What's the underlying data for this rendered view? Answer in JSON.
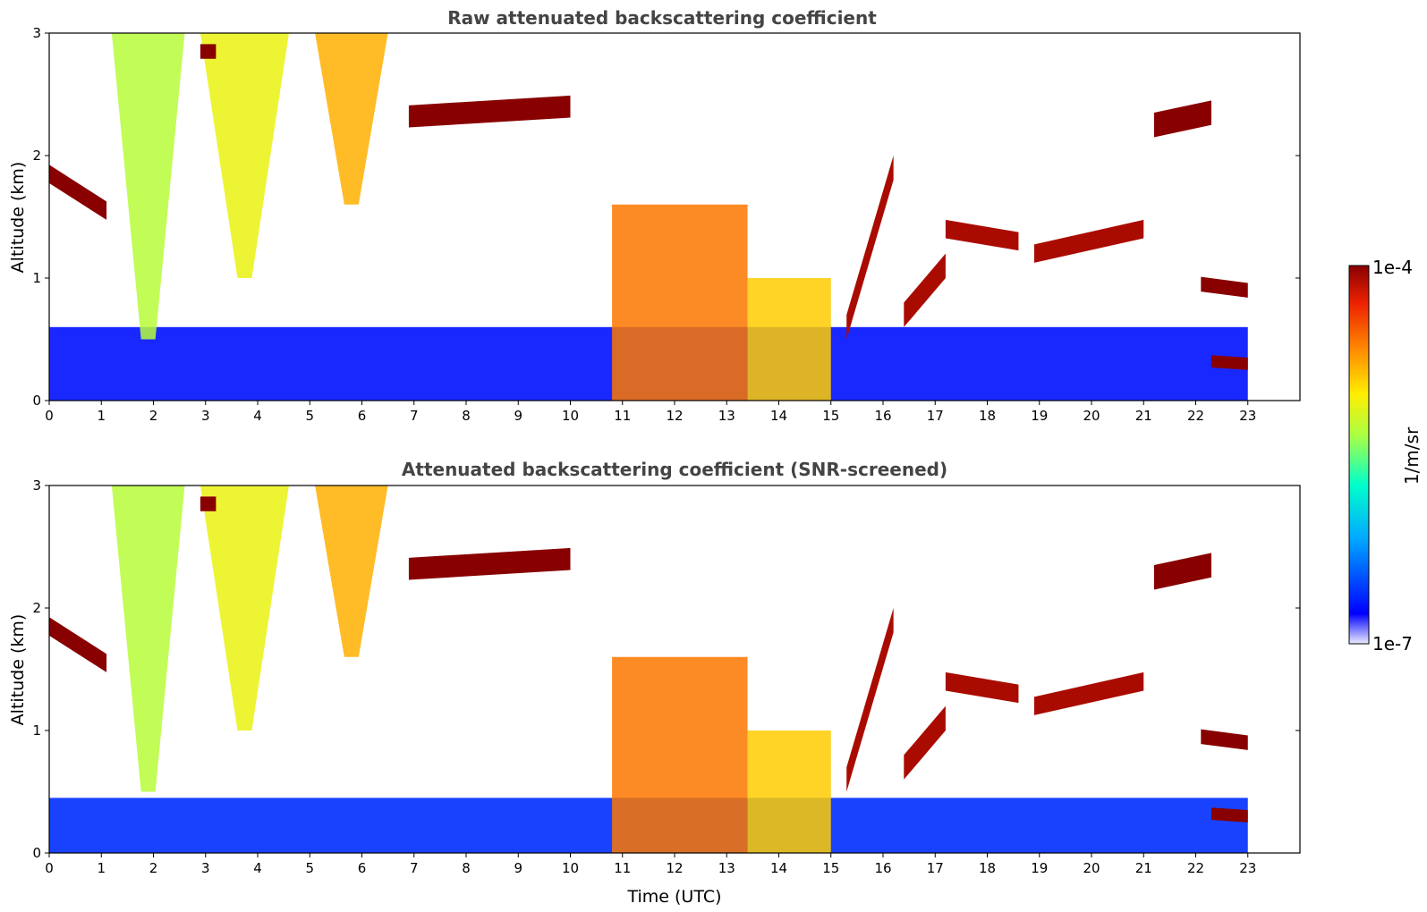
{
  "chart_data": [
    {
      "type": "heatmap",
      "title": "Raw attenuated backscattering coefficient",
      "ylabel": "Altitude (km)",
      "xlabel": "",
      "xlim": [
        0,
        24
      ],
      "ylim": [
        0,
        3
      ],
      "x_ticks": [
        "0",
        "1",
        "2",
        "3",
        "4",
        "5",
        "6",
        "7",
        "8",
        "9",
        "10",
        "11",
        "12",
        "13",
        "14",
        "15",
        "16",
        "17",
        "18",
        "19",
        "20",
        "21",
        "22",
        "23"
      ],
      "y_ticks": [
        "0",
        "1",
        "2",
        "3"
      ],
      "data_end_time": 23,
      "color_scale": "log",
      "features": [
        {
          "kind": "near-surface background",
          "t_start": 0,
          "t_end": 23,
          "alt_top": 0.6,
          "log_value": -6.7
        },
        {
          "kind": "cloud layer",
          "t_start": 0.0,
          "t_end": 1.1,
          "alt_from": 1.85,
          "alt_to": 1.55,
          "thickness": 0.15,
          "log_value": -4.0
        },
        {
          "kind": "precipitation shaft",
          "t_start": 1.2,
          "t_end": 2.6,
          "alt_bottom": 0.5,
          "alt_top": 3.0,
          "log_value": -5.3
        },
        {
          "kind": "precipitation shaft",
          "t_start": 2.9,
          "t_end": 4.6,
          "alt_bottom": 1.0,
          "alt_top": 3.0,
          "log_value": -5.1
        },
        {
          "kind": "cloud layer",
          "t_start": 2.9,
          "t_end": 3.2,
          "alt_from": 2.85,
          "alt_to": 2.85,
          "thickness": 0.12,
          "log_value": -4.0
        },
        {
          "kind": "precipitation shaft",
          "t_start": 5.1,
          "t_end": 6.5,
          "alt_bottom": 1.6,
          "alt_top": 3.0,
          "log_value": -4.8
        },
        {
          "kind": "cloud layer",
          "t_start": 6.9,
          "t_end": 10.0,
          "alt_from": 2.32,
          "alt_to": 2.4,
          "thickness": 0.18,
          "log_value": -4.0
        },
        {
          "kind": "convective cloud",
          "t_start": 10.8,
          "t_end": 13.4,
          "alt_bottom": 0.0,
          "alt_top": 1.6,
          "log_value": -4.6
        },
        {
          "kind": "convective cloud",
          "t_start": 13.4,
          "t_end": 15.0,
          "alt_bottom": 0.0,
          "alt_top": 1.0,
          "log_value": -4.9
        },
        {
          "kind": "cloud layer",
          "t_start": 15.3,
          "t_end": 16.2,
          "alt_from": 0.6,
          "alt_to": 1.9,
          "thickness": 0.2,
          "log_value": -4.1
        },
        {
          "kind": "cloud layer",
          "t_start": 16.4,
          "t_end": 17.2,
          "alt_from": 0.7,
          "alt_to": 1.1,
          "thickness": 0.2,
          "log_value": -4.1
        },
        {
          "kind": "cloud layer",
          "t_start": 17.2,
          "t_end": 18.6,
          "alt_from": 1.4,
          "alt_to": 1.3,
          "thickness": 0.15,
          "log_value": -4.1
        },
        {
          "kind": "cloud layer",
          "t_start": 18.9,
          "t_end": 21.0,
          "alt_from": 1.2,
          "alt_to": 1.4,
          "thickness": 0.15,
          "log_value": -4.1
        },
        {
          "kind": "cloud layer",
          "t_start": 21.2,
          "t_end": 22.3,
          "alt_from": 2.25,
          "alt_to": 2.35,
          "thickness": 0.2,
          "log_value": -4.0
        },
        {
          "kind": "cloud layer",
          "t_start": 22.1,
          "t_end": 23.0,
          "alt_from": 0.95,
          "alt_to": 0.9,
          "thickness": 0.12,
          "log_value": -4.0
        },
        {
          "kind": "cloud layer",
          "t_start": 22.3,
          "t_end": 23.0,
          "alt_from": 0.32,
          "alt_to": 0.3,
          "thickness": 0.1,
          "log_value": -4.0
        }
      ]
    },
    {
      "type": "heatmap",
      "title": "Attenuated backscattering coefficient (SNR-screened)",
      "ylabel": "Altitude (km)",
      "xlabel": "Time (UTC)",
      "xlim": [
        0,
        24
      ],
      "ylim": [
        0,
        3
      ],
      "x_ticks": [
        "0",
        "1",
        "2",
        "3",
        "4",
        "5",
        "6",
        "7",
        "8",
        "9",
        "10",
        "11",
        "12",
        "13",
        "14",
        "15",
        "16",
        "17",
        "18",
        "19",
        "20",
        "21",
        "22",
        "23"
      ],
      "y_ticks": [
        "0",
        "1",
        "2",
        "3"
      ],
      "data_end_time": 23,
      "color_scale": "log",
      "features": [
        {
          "kind": "near-surface background",
          "t_start": 0,
          "t_end": 23,
          "alt_top": 0.45,
          "log_value": -6.6
        },
        {
          "kind": "cloud layer",
          "t_start": 0.0,
          "t_end": 1.1,
          "alt_from": 1.85,
          "alt_to": 1.55,
          "thickness": 0.15,
          "log_value": -4.0
        },
        {
          "kind": "precipitation shaft",
          "t_start": 1.2,
          "t_end": 2.6,
          "alt_bottom": 0.5,
          "alt_top": 3.0,
          "log_value": -5.3
        },
        {
          "kind": "precipitation shaft",
          "t_start": 2.9,
          "t_end": 4.6,
          "alt_bottom": 1.0,
          "alt_top": 3.0,
          "log_value": -5.1
        },
        {
          "kind": "cloud layer",
          "t_start": 2.9,
          "t_end": 3.2,
          "alt_from": 2.85,
          "alt_to": 2.85,
          "thickness": 0.12,
          "log_value": -4.0
        },
        {
          "kind": "precipitation shaft",
          "t_start": 5.1,
          "t_end": 6.5,
          "alt_bottom": 1.6,
          "alt_top": 3.0,
          "log_value": -4.8
        },
        {
          "kind": "cloud layer",
          "t_start": 6.9,
          "t_end": 10.0,
          "alt_from": 2.32,
          "alt_to": 2.4,
          "thickness": 0.18,
          "log_value": -4.0
        },
        {
          "kind": "convective cloud",
          "t_start": 10.8,
          "t_end": 13.4,
          "alt_bottom": 0.0,
          "alt_top": 1.6,
          "log_value": -4.6
        },
        {
          "kind": "convective cloud",
          "t_start": 13.4,
          "t_end": 15.0,
          "alt_bottom": 0.0,
          "alt_top": 1.0,
          "log_value": -4.9
        },
        {
          "kind": "cloud layer",
          "t_start": 15.3,
          "t_end": 16.2,
          "alt_from": 0.6,
          "alt_to": 1.9,
          "thickness": 0.2,
          "log_value": -4.1
        },
        {
          "kind": "cloud layer",
          "t_start": 16.4,
          "t_end": 17.2,
          "alt_from": 0.7,
          "alt_to": 1.1,
          "thickness": 0.2,
          "log_value": -4.1
        },
        {
          "kind": "cloud layer",
          "t_start": 17.2,
          "t_end": 18.6,
          "alt_from": 1.4,
          "alt_to": 1.3,
          "thickness": 0.15,
          "log_value": -4.1
        },
        {
          "kind": "cloud layer",
          "t_start": 18.9,
          "t_end": 21.0,
          "alt_from": 1.2,
          "alt_to": 1.4,
          "thickness": 0.15,
          "log_value": -4.1
        },
        {
          "kind": "cloud layer",
          "t_start": 21.2,
          "t_end": 22.3,
          "alt_from": 2.25,
          "alt_to": 2.35,
          "thickness": 0.2,
          "log_value": -4.0
        },
        {
          "kind": "cloud layer",
          "t_start": 22.1,
          "t_end": 23.0,
          "alt_from": 0.95,
          "alt_to": 0.9,
          "thickness": 0.12,
          "log_value": -4.0
        },
        {
          "kind": "cloud layer",
          "t_start": 22.3,
          "t_end": 23.0,
          "alt_from": 0.32,
          "alt_to": 0.3,
          "thickness": 0.1,
          "log_value": -4.0
        }
      ]
    }
  ],
  "colorbar": {
    "label": "1/m/sr",
    "max_label": "1e-4",
    "min_label": "1e-7",
    "scale": "log",
    "colormap": "jet",
    "colors": [
      "#ececff",
      "#0000ff",
      "#00aaff",
      "#00ffcc",
      "#aaff44",
      "#ffee00",
      "#ff8800",
      "#ee2200",
      "#880000"
    ]
  }
}
